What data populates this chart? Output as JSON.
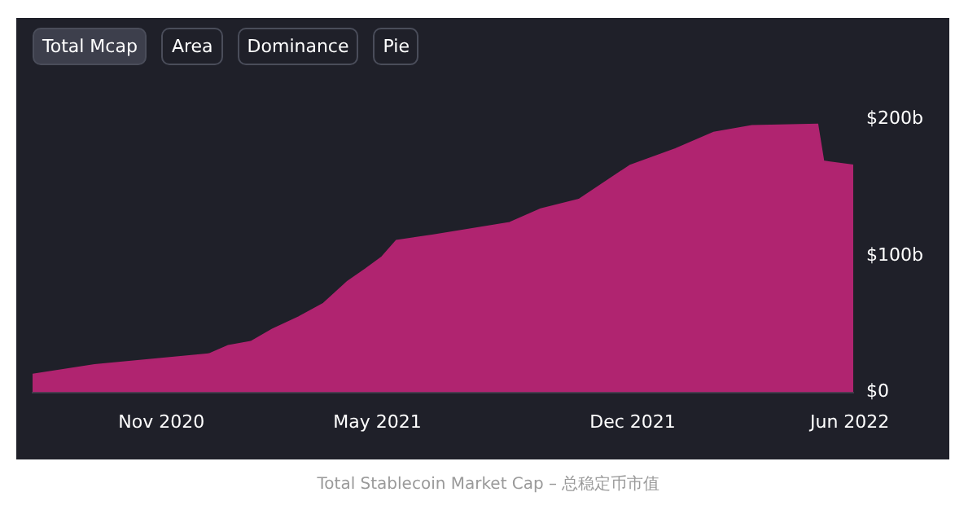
{
  "chart_data": {
    "type": "area",
    "x": [
      "2020-07-16",
      "2020-09-06",
      "2020-12-11",
      "2020-12-27",
      "2021-01-15",
      "2021-02-02",
      "2021-02-24",
      "2021-03-17",
      "2021-04-06",
      "2021-04-21",
      "2021-05-05",
      "2021-05-17",
      "2021-06-17",
      "2021-08-20",
      "2021-09-15",
      "2021-10-17",
      "2021-11-29",
      "2022-01-06",
      "2022-02-07",
      "2022-03-11",
      "2022-05-05",
      "2022-05-10",
      "2022-06-04"
    ],
    "series": [
      {
        "color": "#b02470",
        "values": [
          13,
          20,
          28,
          34,
          37,
          46,
          55,
          65,
          81,
          90,
          99,
          111,
          115,
          124,
          134,
          141,
          166,
          178,
          190,
          195,
          196,
          169,
          166
        ]
      }
    ],
    "xlim": [
      "2020-07-16",
      "2022-06-04"
    ],
    "xticks": [
      {
        "value": "2020-11-01",
        "label": "Nov 2020"
      },
      {
        "value": "2021-05-01",
        "label": "May 2021"
      },
      {
        "value": "2021-12-01",
        "label": "Dec 2021"
      },
      {
        "value": "2022-06-01",
        "label": "Jun 2022"
      }
    ],
    "ylim": [
      0,
      200
    ],
    "yticks": [
      {
        "value": 0,
        "label": "$0"
      },
      {
        "value": 100,
        "label": "$100b"
      },
      {
        "value": 200,
        "label": "$200b"
      }
    ],
    "grid": false,
    "legend": false,
    "annotations": [
      "Total Mcap",
      "Area",
      "Dominance",
      "Pie",
      "Total Stablecoin Market Cap – 总稳定币市值"
    ]
  }
}
